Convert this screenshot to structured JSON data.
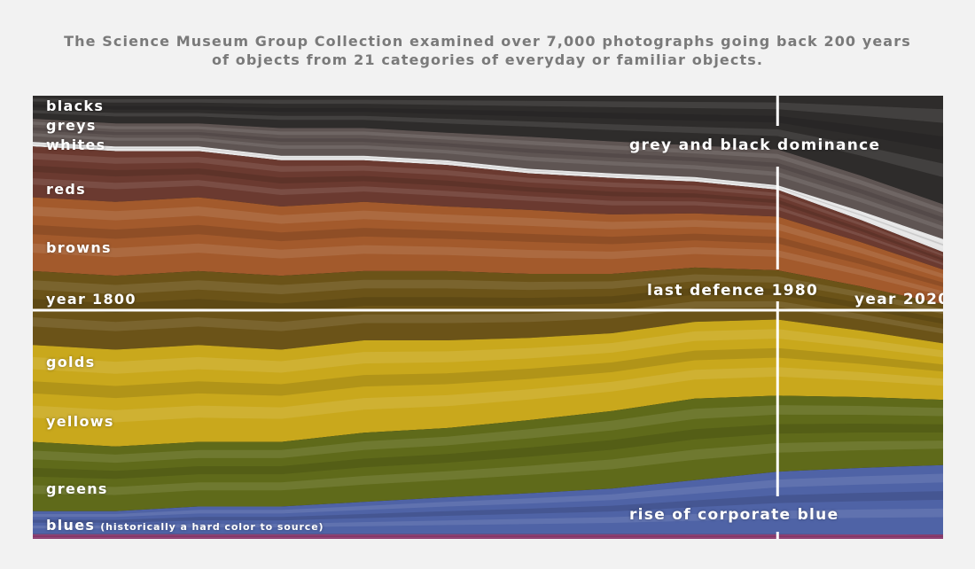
{
  "header": {
    "line1": "The Science Museum Group Collection examined over 7,000 photographs going back 200 years",
    "line2": "of objects from 21 categories of everyday or familiar objects."
  },
  "chart_data": {
    "type": "area",
    "x": [
      1800,
      1820,
      1840,
      1860,
      1880,
      1900,
      1920,
      1940,
      1960,
      1980,
      2000,
      2020
    ],
    "xlim": [
      1800,
      2020
    ],
    "ylim": [
      0,
      1
    ],
    "grid": false,
    "legend": "labels inline on left edge",
    "groups": [
      {
        "name": "blacks",
        "color": "#2e2c2b",
        "values": [
          0.05,
          0.06,
          0.06,
          0.07,
          0.07,
          0.08,
          0.09,
          0.1,
          0.11,
          0.12,
          0.18,
          0.25
        ]
      },
      {
        "name": "greys",
        "color": "#5f5553",
        "values": [
          0.05,
          0.05,
          0.05,
          0.06,
          0.06,
          0.06,
          0.07,
          0.07,
          0.07,
          0.08,
          0.08,
          0.08
        ]
      },
      {
        "name": "whites",
        "color": "#e6e6e6",
        "values": [
          0.01,
          0.01,
          0.01,
          0.01,
          0.01,
          0.01,
          0.01,
          0.01,
          0.01,
          0.01,
          0.02,
          0.03
        ]
      },
      {
        "name": "reds",
        "color": "#6b3a30",
        "values": [
          0.11,
          0.11,
          0.1,
          0.1,
          0.09,
          0.09,
          0.08,
          0.08,
          0.07,
          0.06,
          0.05,
          0.04
        ]
      },
      {
        "name": "browns",
        "color": "#a35a2c",
        "values": [
          0.16,
          0.16,
          0.16,
          0.15,
          0.15,
          0.14,
          0.14,
          0.13,
          0.12,
          0.12,
          0.1,
          0.08
        ]
      },
      {
        "name": "golds",
        "color": "#6b5318",
        "values": [
          0.16,
          0.16,
          0.16,
          0.16,
          0.15,
          0.15,
          0.14,
          0.13,
          0.12,
          0.11,
          0.1,
          0.09
        ]
      },
      {
        "name": "yellows",
        "color": "#c9a81c",
        "values": [
          0.21,
          0.21,
          0.21,
          0.2,
          0.2,
          0.19,
          0.18,
          0.17,
          0.17,
          0.17,
          0.15,
          0.13
        ]
      },
      {
        "name": "greens",
        "color": "#5f6a1a",
        "values": [
          0.15,
          0.14,
          0.14,
          0.14,
          0.15,
          0.15,
          0.16,
          0.17,
          0.18,
          0.17,
          0.16,
          0.15
        ]
      },
      {
        "name": "blues",
        "color": "#4f63a6",
        "values": [
          0.05,
          0.05,
          0.06,
          0.06,
          0.07,
          0.08,
          0.09,
          0.1,
          0.12,
          0.14,
          0.15,
          0.16
        ]
      },
      {
        "name": "",
        "color": "#8a3a6e",
        "values": [
          0.01,
          0.01,
          0.01,
          0.01,
          0.01,
          0.01,
          0.01,
          0.01,
          0.01,
          0.01,
          0.01,
          0.01
        ]
      }
    ],
    "labels": {
      "blacks": "blacks",
      "greys": "greys",
      "whites": "whites",
      "reds": "reds",
      "browns": "browns",
      "year_start": "year 1800",
      "golds": "golds",
      "yellows": "yellows",
      "greens": "greens",
      "blues": "blues",
      "blues_note": "(historically a hard color to source)"
    },
    "annotations": {
      "grey_black": "grey and black dominance",
      "last_defence": "last defence 1980",
      "year_end": "year 2020",
      "corporate_blue": "rise of corporate blue"
    }
  }
}
